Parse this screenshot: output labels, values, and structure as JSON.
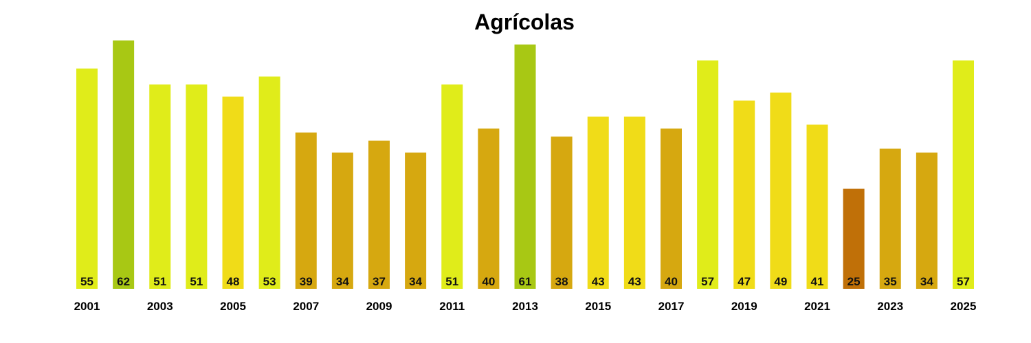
{
  "chart_data": {
    "type": "bar",
    "title": "Agrícolas",
    "xlabel": "",
    "ylabel": "",
    "categories": [
      "2001",
      "2002",
      "2003",
      "2004",
      "2005",
      "2006",
      "2007",
      "2008",
      "2009",
      "2010",
      "2011",
      "2012",
      "2013",
      "2014",
      "2015",
      "2016",
      "2017",
      "2018",
      "2019",
      "2020",
      "2021",
      "2022",
      "2023",
      "2024",
      "2025"
    ],
    "x_tick_labels": [
      "2001",
      "2003",
      "2005",
      "2007",
      "2009",
      "2011",
      "2013",
      "2015",
      "2017",
      "2019",
      "2021",
      "2023",
      "2025"
    ],
    "values": [
      55,
      62,
      51,
      51,
      48,
      53,
      39,
      34,
      37,
      34,
      51,
      40,
      61,
      38,
      43,
      43,
      40,
      57,
      47,
      49,
      41,
      25,
      35,
      34,
      57
    ],
    "colors": [
      "#e0ec1a",
      "#a8c814",
      "#e0ec1a",
      "#e0ec1a",
      "#f0dc18",
      "#e0ec1a",
      "#d6a810",
      "#d6a810",
      "#d6a810",
      "#d6a810",
      "#e0ec1a",
      "#d6a810",
      "#a8c814",
      "#d6a810",
      "#f0dc18",
      "#f0dc18",
      "#d6a810",
      "#e0ec1a",
      "#f0dc18",
      "#f0dc18",
      "#f0dc18",
      "#c07008",
      "#d6a810",
      "#d6a810",
      "#e0ec1a"
    ],
    "ylim": [
      0,
      62
    ],
    "grid": false,
    "legend": "none"
  }
}
